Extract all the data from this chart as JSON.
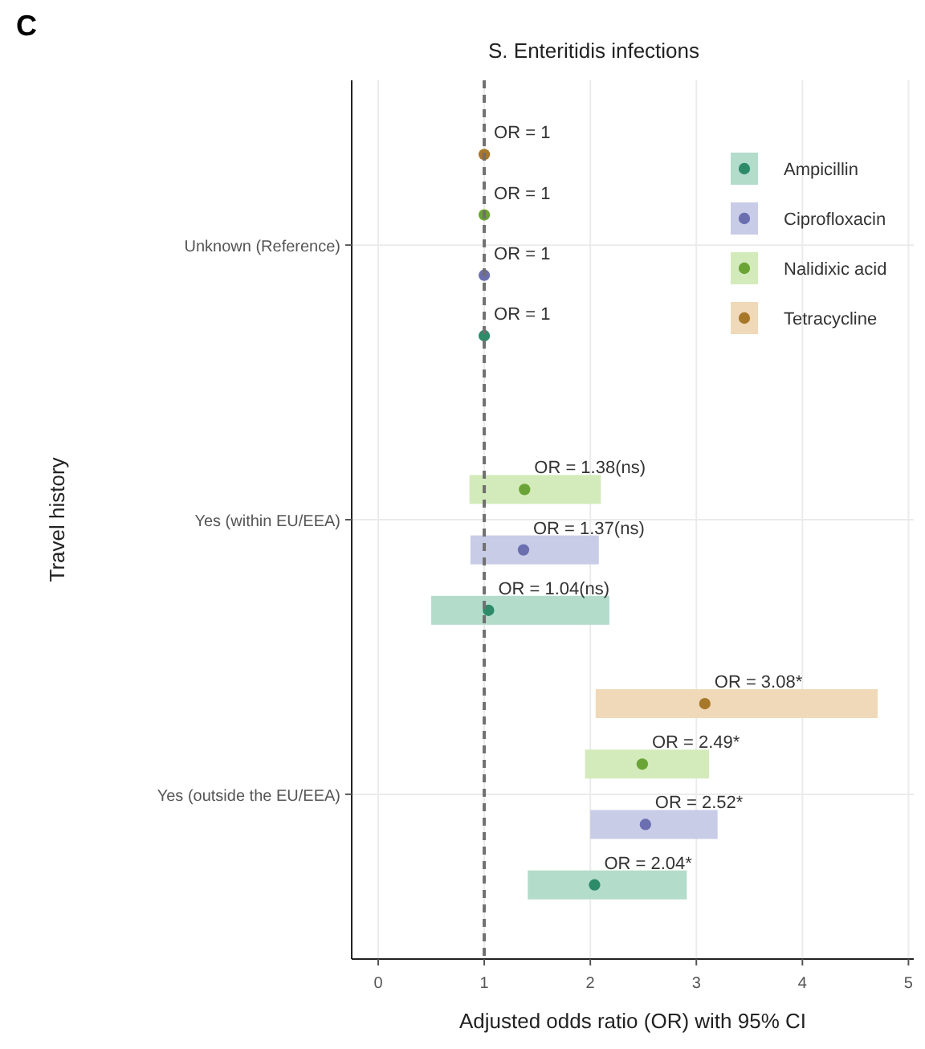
{
  "chart_data": {
    "type": "scatter",
    "orientation": "horizontal",
    "title": "S. Enteritidis infections",
    "xlabel": "Adjusted odds ratio (OR) with 95% CI",
    "ylabel": "Travel history",
    "annotations": [
      "C"
    ],
    "categories": [
      "Unknown (Reference)",
      "Yes (within EU/EEA)",
      "Yes (outside the EU/EEA)"
    ],
    "series": [
      {
        "type": "bar",
        "color": "#b3dccb",
        "base": [
          null,
          0.5,
          1.41
        ],
        "values": [
          null,
          1.68,
          1.5
        ]
      },
      {
        "type": "bar",
        "color": "#c8cce6",
        "base": [
          null,
          0.87,
          2.0
        ],
        "values": [
          null,
          1.21,
          1.2
        ]
      },
      {
        "type": "bar",
        "color": "#d3ebbb",
        "base": [
          null,
          0.86,
          1.95
        ],
        "values": [
          null,
          1.24,
          1.17
        ]
      },
      {
        "type": "bar",
        "color": "#efd9b9",
        "base": [
          null,
          null,
          2.05
        ],
        "values": [
          null,
          null,
          2.66
        ]
      },
      {
        "name": "Ampicillin",
        "color": "#2e8b6a",
        "values": [
          1,
          1.04,
          2.04
        ],
        "value_labels": [
          "OR = 1",
          "OR = 1.04(ns)",
          "OR = 2.04*"
        ]
      },
      {
        "name": "Ciprofloxacin",
        "color": "#6b6fb0",
        "values": [
          1,
          1.37,
          2.52
        ],
        "value_labels": [
          "OR = 1",
          "OR = 1.37(ns)",
          "OR = 2.52*"
        ]
      },
      {
        "name": "Nalidixic acid",
        "color": "#6aa436",
        "values": [
          1,
          1.38,
          2.49
        ],
        "value_labels": [
          "OR = 1",
          "OR = 1.38(ns)",
          "OR = 2.49*"
        ]
      },
      {
        "name": "Tetracycline",
        "color": "#a8782a",
        "values": [
          1,
          null,
          3.08
        ],
        "value_labels": [
          "OR = 1",
          null,
          "OR = 3.08*"
        ]
      }
    ],
    "xlim": [
      -0.25,
      5.05
    ],
    "xticks": [
      0,
      1,
      2,
      3,
      4,
      5
    ],
    "grid": true,
    "legend": "top right",
    "marker": "circle",
    "ref_lines": [
      {
        "axis": "x",
        "value": 1,
        "line_style": "dashed",
        "color": "#707070"
      }
    ]
  }
}
